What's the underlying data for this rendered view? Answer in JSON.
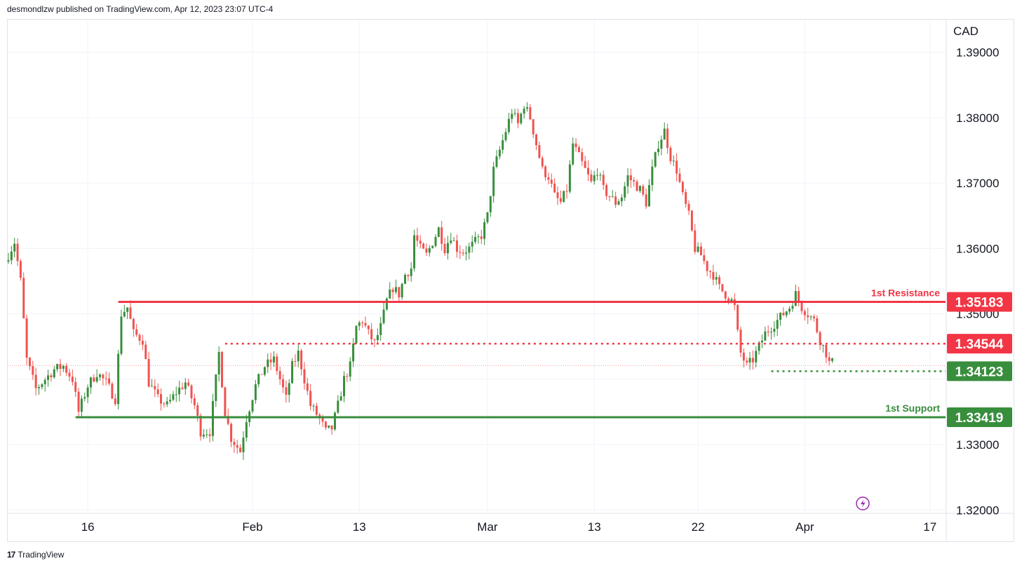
{
  "header": {
    "publisher_line": "desmondlzw published on TradingView.com, Apr 12, 2023 23:07 UTC-4"
  },
  "footer": {
    "brand": "TradingView",
    "logo_glyph": "17"
  },
  "colors": {
    "up": "#388e3c",
    "down": "#ef5350",
    "resistance": "#f23645",
    "support": "#388e3c",
    "grid": "#f0f3fa",
    "axis_text": "#131722",
    "purple_icon": "#9c27b0"
  },
  "chart_data": {
    "type": "candlestick",
    "currency_label": "CAD",
    "ylim": [
      1.3196,
      1.395
    ],
    "y_ticks": [
      "1.39000",
      "1.38000",
      "1.37000",
      "1.36000",
      "1.35000",
      "1.33000",
      "1.32000"
    ],
    "x_ticks": [
      "16",
      "Feb",
      "13",
      "Mar",
      "13",
      "22",
      "Apr",
      "17"
    ],
    "levels": [
      {
        "name": "1st Resistance",
        "value": 1.35183,
        "label": "1.35183",
        "style": "solid",
        "color": "#f23645"
      },
      {
        "name": "",
        "value": 1.34544,
        "label": "1.34544",
        "style": "dotted",
        "color": "#f23645"
      },
      {
        "name": "",
        "value": 1.34123,
        "label": "1.34123",
        "style": "dotted",
        "color": "#388e3c"
      },
      {
        "name": "1st Support",
        "value": 1.33419,
        "label": "1.33419",
        "style": "solid",
        "color": "#388e3c"
      }
    ],
    "level_texts": {
      "resistance": "1st Resistance",
      "support": "1st Support"
    },
    "path_anchors": [
      [
        0,
        1.358
      ],
      [
        3,
        1.361
      ],
      [
        5,
        1.355
      ],
      [
        7,
        1.343
      ],
      [
        10,
        1.3385
      ],
      [
        13,
        1.34
      ],
      [
        16,
        1.3415
      ],
      [
        19,
        1.342
      ],
      [
        22,
        1.34
      ],
      [
        24,
        1.335
      ],
      [
        27,
        1.339
      ],
      [
        30,
        1.341
      ],
      [
        33,
        1.3395
      ],
      [
        36,
        1.337
      ],
      [
        38,
        1.35
      ],
      [
        40,
        1.351
      ],
      [
        42,
        1.347
      ],
      [
        45,
        1.346
      ],
      [
        47,
        1.3395
      ],
      [
        50,
        1.337
      ],
      [
        53,
        1.336
      ],
      [
        56,
        1.338
      ],
      [
        59,
        1.3395
      ],
      [
        62,
        1.336
      ],
      [
        64,
        1.332
      ],
      [
        67,
        1.332
      ],
      [
        70,
        1.344
      ],
      [
        72,
        1.335
      ],
      [
        74,
        1.331
      ],
      [
        77,
        1.329
      ],
      [
        79,
        1.334
      ],
      [
        82,
        1.339
      ],
      [
        85,
        1.342
      ],
      [
        88,
        1.343
      ],
      [
        90,
        1.34
      ],
      [
        92,
        1.337
      ],
      [
        94,
        1.342
      ],
      [
        96,
        1.344
      ],
      [
        98,
        1.34
      ],
      [
        100,
        1.336
      ],
      [
        103,
        1.334
      ],
      [
        105,
        1.332
      ],
      [
        107,
        1.3325
      ],
      [
        109,
        1.336
      ],
      [
        111,
        1.34
      ],
      [
        113,
        1.342
      ],
      [
        115,
        1.348
      ],
      [
        117,
        1.349
      ],
      [
        119,
        1.347
      ],
      [
        121,
        1.3455
      ],
      [
        123,
        1.348
      ],
      [
        125,
        1.352
      ],
      [
        127,
        1.354
      ],
      [
        129,
        1.353
      ],
      [
        131,
        1.356
      ],
      [
        133,
        1.357
      ],
      [
        134,
        1.362
      ],
      [
        136,
        1.36
      ],
      [
        138,
        1.359
      ],
      [
        140,
        1.361
      ],
      [
        142,
        1.363
      ],
      [
        144,
        1.36
      ],
      [
        146,
        1.362
      ],
      [
        148,
        1.36
      ],
      [
        150,
        1.3595
      ],
      [
        152,
        1.36
      ],
      [
        154,
        1.361
      ],
      [
        156,
        1.362
      ],
      [
        158,
        1.365
      ],
      [
        160,
        1.372
      ],
      [
        162,
        1.375
      ],
      [
        164,
        1.378
      ],
      [
        166,
        1.381
      ],
      [
        168,
        1.379
      ],
      [
        170,
        1.382
      ],
      [
        172,
        1.38
      ],
      [
        174,
        1.376
      ],
      [
        176,
        1.372
      ],
      [
        178,
        1.371
      ],
      [
        180,
        1.368
      ],
      [
        182,
        1.367
      ],
      [
        184,
        1.369
      ],
      [
        186,
        1.376
      ],
      [
        188,
        1.374
      ],
      [
        190,
        1.372
      ],
      [
        192,
        1.37
      ],
      [
        194,
        1.372
      ],
      [
        196,
        1.369
      ],
      [
        198,
        1.368
      ],
      [
        200,
        1.367
      ],
      [
        202,
        1.368
      ],
      [
        204,
        1.371
      ],
      [
        206,
        1.37
      ],
      [
        208,
        1.369
      ],
      [
        210,
        1.367
      ],
      [
        212,
        1.372
      ],
      [
        214,
        1.376
      ],
      [
        216,
        1.378
      ],
      [
        218,
        1.374
      ],
      [
        220,
        1.372
      ],
      [
        222,
        1.368
      ],
      [
        224,
        1.365
      ],
      [
        226,
        1.36
      ],
      [
        228,
        1.359
      ],
      [
        230,
        1.357
      ],
      [
        232,
        1.356
      ],
      [
        234,
        1.354
      ],
      [
        236,
        1.353
      ],
      [
        238,
        1.352
      ],
      [
        239,
        1.351
      ],
      [
        240,
        1.347
      ],
      [
        241,
        1.344
      ],
      [
        243,
        1.342
      ],
      [
        245,
        1.343
      ],
      [
        247,
        1.345
      ],
      [
        249,
        1.347
      ],
      [
        251,
        1.348
      ],
      [
        253,
        1.349
      ],
      [
        255,
        1.35
      ],
      [
        257,
        1.351
      ],
      [
        259,
        1.353
      ],
      [
        261,
        1.351
      ],
      [
        263,
        1.35
      ],
      [
        265,
        1.349
      ],
      [
        267,
        1.346
      ],
      [
        269,
        1.344
      ],
      [
        270,
        1.3425
      ]
    ],
    "x_tick_indices": [
      26,
      80,
      115,
      157,
      192,
      226,
      261,
      302
    ]
  }
}
